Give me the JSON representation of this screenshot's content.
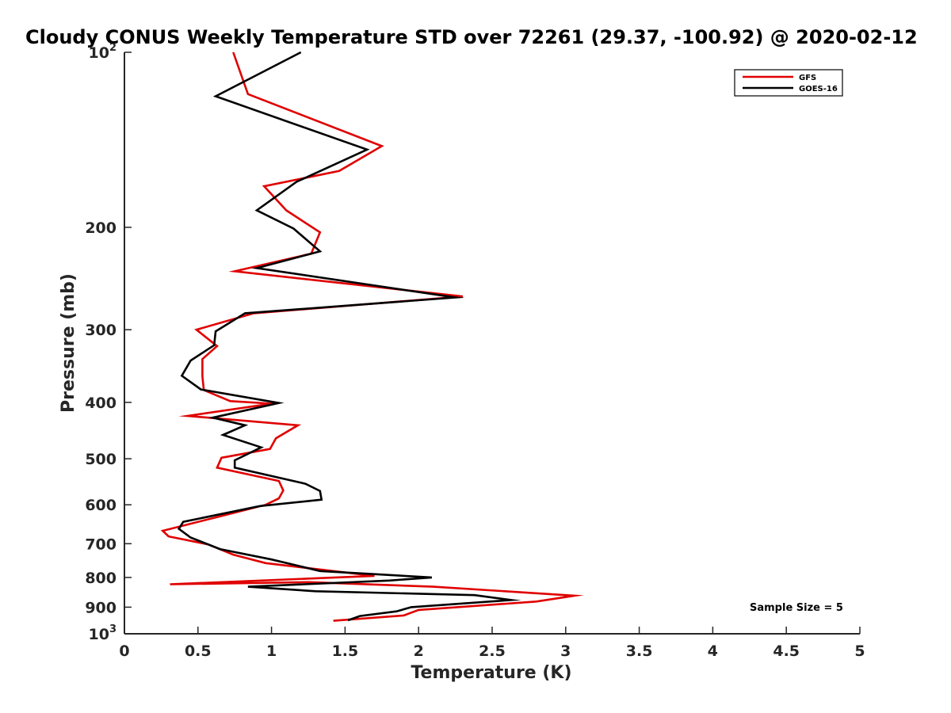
{
  "chart_data": {
    "type": "line",
    "title": "Cloudy CONUS Weekly Temperature STD over 72261 (29.37, -100.92) @ 2020-02-12",
    "xlabel": "Temperature (K)",
    "ylabel": "Pressure (mb)",
    "xlim": [
      0,
      5
    ],
    "ylim": [
      100,
      1000
    ],
    "y_scale": "log",
    "y_reversed": false,
    "grid": false,
    "legend_position": "top-right",
    "x_ticks": [
      0,
      0.5,
      1,
      1.5,
      2,
      2.5,
      3,
      3.5,
      4,
      4.5,
      5
    ],
    "x_tick_labels": [
      "0",
      "0.5",
      "1",
      "1.5",
      "2",
      "2.5",
      "3",
      "3.5",
      "4",
      "4.5",
      "5"
    ],
    "y_ticks": [
      100,
      200,
      300,
      400,
      500,
      600,
      700,
      800,
      900,
      1000
    ],
    "y_tick_labels": [
      {
        "base": "10",
        "exp": "2"
      },
      {
        "base": "200",
        "exp": ""
      },
      {
        "base": "300",
        "exp": ""
      },
      {
        "base": "400",
        "exp": ""
      },
      {
        "base": "500",
        "exp": ""
      },
      {
        "base": "600",
        "exp": ""
      },
      {
        "base": "700",
        "exp": ""
      },
      {
        "base": "800",
        "exp": ""
      },
      {
        "base": "900",
        "exp": ""
      },
      {
        "base": "10",
        "exp": "3"
      }
    ],
    "annotation": "Sample Size = 5",
    "series": [
      {
        "name": "GFS",
        "color": "#e00000",
        "points": [
          [
            0.74,
            100
          ],
          [
            0.84,
            118
          ],
          [
            1.75,
            145
          ],
          [
            1.46,
            160
          ],
          [
            0.95,
            170
          ],
          [
            1.1,
            187
          ],
          [
            1.33,
            204
          ],
          [
            1.27,
            222
          ],
          [
            0.75,
            238
          ],
          [
            2.3,
            263
          ],
          [
            0.88,
            281
          ],
          [
            0.49,
            300
          ],
          [
            0.63,
            320
          ],
          [
            0.53,
            337
          ],
          [
            0.53,
            361
          ],
          [
            0.54,
            381
          ],
          [
            0.72,
            398
          ],
          [
            1.0,
            402
          ],
          [
            0.43,
            422
          ],
          [
            1.18,
            438
          ],
          [
            1.03,
            461
          ],
          [
            0.99,
            481
          ],
          [
            0.66,
            498
          ],
          [
            0.63,
            518
          ],
          [
            1.05,
            546
          ],
          [
            1.08,
            567
          ],
          [
            1.05,
            585
          ],
          [
            0.96,
            600
          ],
          [
            0.64,
            629
          ],
          [
            0.26,
            665
          ],
          [
            0.3,
            680
          ],
          [
            0.57,
            702
          ],
          [
            0.74,
            731
          ],
          [
            0.96,
            756
          ],
          [
            1.7,
            795
          ],
          [
            0.31,
            822
          ],
          [
            1.25,
            815
          ],
          [
            2.1,
            830
          ],
          [
            3.06,
            860
          ],
          [
            2.8,
            880
          ],
          [
            2.0,
            910
          ],
          [
            1.9,
            930
          ],
          [
            1.42,
            950
          ]
        ]
      },
      {
        "name": "GOES-16",
        "color": "#000000",
        "points": [
          [
            1.2,
            100
          ],
          [
            0.62,
            119
          ],
          [
            1.65,
            147
          ],
          [
            1.17,
            167
          ],
          [
            0.9,
            187
          ],
          [
            1.15,
            201
          ],
          [
            1.33,
            220
          ],
          [
            0.9,
            235
          ],
          [
            2.25,
            264
          ],
          [
            0.82,
            281
          ],
          [
            0.62,
            302
          ],
          [
            0.61,
            319
          ],
          [
            0.45,
            339
          ],
          [
            0.39,
            360
          ],
          [
            0.52,
            380
          ],
          [
            1.05,
            401
          ],
          [
            0.6,
            425
          ],
          [
            0.82,
            438
          ],
          [
            0.67,
            455
          ],
          [
            0.93,
            478
          ],
          [
            0.75,
            503
          ],
          [
            0.75,
            518
          ],
          [
            1.23,
            552
          ],
          [
            1.33,
            568
          ],
          [
            1.34,
            588
          ],
          [
            0.92,
            603
          ],
          [
            0.4,
            642
          ],
          [
            0.37,
            660
          ],
          [
            0.45,
            683
          ],
          [
            0.65,
            715
          ],
          [
            1.0,
            745
          ],
          [
            1.33,
            780
          ],
          [
            2.09,
            800
          ],
          [
            1.8,
            810
          ],
          [
            0.84,
            830
          ],
          [
            1.3,
            845
          ],
          [
            2.38,
            858
          ],
          [
            2.63,
            875
          ],
          [
            1.95,
            900
          ],
          [
            1.85,
            915
          ],
          [
            1.6,
            932
          ],
          [
            1.52,
            948
          ]
        ]
      }
    ]
  }
}
